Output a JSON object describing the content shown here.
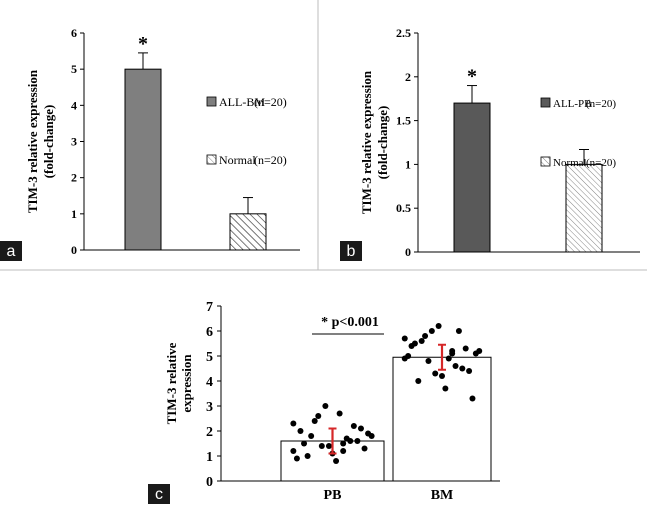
{
  "chart_data": [
    {
      "panel": "a",
      "type": "bar",
      "ylabel": "TIM-3 relative expression",
      "ylabel2": "(fold-change)",
      "yticks": [
        "0",
        "1",
        "2",
        "3",
        "4",
        "5",
        "6"
      ],
      "ylim": [
        0,
        6
      ],
      "annotation": "*",
      "series": [
        {
          "name": "ALL-BM",
          "n_label": "(n=20)",
          "value": 5.0,
          "error": 0.45,
          "fill": "#7f7f7f",
          "pattern": "solid"
        },
        {
          "name": "Normal",
          "n_label": "(n=20)",
          "value": 1.0,
          "error": 0.45,
          "fill": "#ffffff",
          "pattern": "hatch"
        }
      ],
      "legend_position": "right"
    },
    {
      "panel": "b",
      "type": "bar",
      "ylabel": "TIM-3 relative expression",
      "ylabel2": "(fold-change)",
      "yticks": [
        "0",
        "0.5",
        "1",
        "1.5",
        "2",
        "2.5"
      ],
      "ylim": [
        0,
        2.5
      ],
      "annotation": "*",
      "series": [
        {
          "name": "ALL-PB",
          "n_label": "(n=20)",
          "value": 1.7,
          "error": 0.2,
          "fill": "#595959",
          "pattern": "solid"
        },
        {
          "name": "Normal",
          "n_label": "(n=20)",
          "value": 1.0,
          "error": 0.17,
          "fill": "#ffffff",
          "pattern": "hatch"
        }
      ],
      "legend_position": "right"
    },
    {
      "panel": "c",
      "type": "bar",
      "ylabel": "TIM-3 relative",
      "ylabel2": "expression",
      "yticks": [
        "0",
        "1",
        "2",
        "3",
        "4",
        "5",
        "6",
        "7"
      ],
      "ylim": [
        0,
        7
      ],
      "categories": [
        "PB",
        "BM"
      ],
      "values": [
        1.6,
        4.95
      ],
      "errors": [
        0.5,
        0.5
      ],
      "annotation": "* p<0.001",
      "points": [
        [
          1.2,
          1.5,
          1.8,
          2.1,
          1.4,
          0.9,
          1.7,
          2.4,
          1.3,
          1.1,
          2.0,
          1.6,
          2.6,
          1.9,
          0.8,
          1.5,
          2.2,
          1.4,
          1.8,
          2.7,
          1.0,
          1.6,
          3.0,
          2.3,
          1.2
        ],
        [
          4.9,
          5.2,
          5.6,
          4.4,
          6.2,
          5.0,
          4.6,
          5.8,
          3.3,
          4.2,
          5.4,
          6.0,
          4.8,
          5.1,
          3.7,
          5.5,
          4.5,
          6.0,
          5.2,
          4.9,
          4.0,
          5.3,
          4.3,
          5.7,
          5.1
        ]
      ]
    }
  ]
}
